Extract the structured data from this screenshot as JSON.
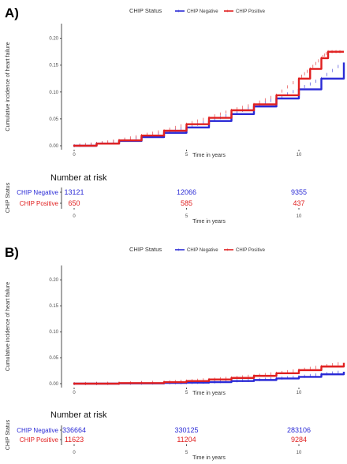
{
  "chart_data": [
    {
      "panel_label": "A)",
      "type": "line",
      "legend_title": "CHIP Status",
      "legend_position": "top",
      "xlabel": "Time in years",
      "ylabel": "Cumulative incidence of heart failure",
      "xlim": [
        0,
        12
      ],
      "ylim": [
        0,
        0.22
      ],
      "x_ticks": [
        "0",
        "5",
        "10"
      ],
      "y_ticks": [
        "0.00",
        "0.05",
        "0.10",
        "0.15",
        "0.20"
      ],
      "series": [
        {
          "name": "CHIP Negative",
          "color": "#2b2bd6",
          "x": [
            0,
            1,
            2,
            3,
            4,
            5,
            6,
            7,
            8,
            9,
            10,
            11,
            12
          ],
          "y": [
            0,
            0.004,
            0.009,
            0.016,
            0.024,
            0.034,
            0.046,
            0.059,
            0.073,
            0.088,
            0.105,
            0.125,
            0.155
          ]
        },
        {
          "name": "CHIP Positive",
          "color": "#e02020",
          "x": [
            0,
            1,
            2,
            3,
            4,
            5,
            6,
            7,
            8,
            9,
            10,
            10.5,
            11,
            11.3,
            12
          ],
          "y": [
            0,
            0.004,
            0.01,
            0.019,
            0.028,
            0.04,
            0.052,
            0.066,
            0.077,
            0.094,
            0.125,
            0.143,
            0.163,
            0.175,
            0.175
          ]
        }
      ],
      "risk_table": {
        "title": "Number at risk",
        "axis_label": "CHIP Status",
        "xlabel": "Time in years",
        "x_ticks": [
          "0",
          "5",
          "10"
        ],
        "rows": [
          {
            "label": "CHIP Negative",
            "color": "#2b2bd6",
            "values": [
              "13121",
              "12066",
              "9355"
            ]
          },
          {
            "label": "CHIP Positive",
            "color": "#e02020",
            "values": [
              "650",
              "585",
              "437"
            ]
          }
        ]
      }
    },
    {
      "panel_label": "B)",
      "type": "line",
      "legend_title": "CHIP Status",
      "legend_position": "top",
      "xlabel": "Time in years",
      "ylabel": "Cumulative incidence of heart failure",
      "xlim": [
        0,
        12
      ],
      "ylim": [
        0,
        0.22
      ],
      "x_ticks": [
        "0",
        "5",
        "10"
      ],
      "y_ticks": [
        "0.00",
        "0.05",
        "0.10",
        "0.15",
        "0.20"
      ],
      "series": [
        {
          "name": "CHIP Negative",
          "color": "#2b2bd6",
          "x": [
            0,
            2,
            4,
            5,
            6,
            7,
            8,
            9,
            10,
            11,
            12
          ],
          "y": [
            0,
            0.0005,
            0.0015,
            0.002,
            0.003,
            0.005,
            0.007,
            0.01,
            0.013,
            0.018,
            0.023
          ]
        },
        {
          "name": "CHIP Positive",
          "color": "#e02020",
          "x": [
            0,
            2,
            4,
            5,
            6,
            7,
            8,
            9,
            10,
            11,
            12
          ],
          "y": [
            0,
            0.001,
            0.003,
            0.005,
            0.008,
            0.011,
            0.015,
            0.02,
            0.026,
            0.033,
            0.04
          ]
        }
      ],
      "risk_table": {
        "title": "Number at risk",
        "axis_label": "CHIP Status",
        "xlabel": "Time in years",
        "x_ticks": [
          "0",
          "5",
          "10"
        ],
        "rows": [
          {
            "label": "CHIP Negative",
            "color": "#2b2bd6",
            "values": [
              "336664",
              "330125",
              "283106"
            ]
          },
          {
            "label": "CHIP Positive",
            "color": "#e02020",
            "values": [
              "11623",
              "11204",
              "9284"
            ]
          }
        ]
      }
    }
  ]
}
